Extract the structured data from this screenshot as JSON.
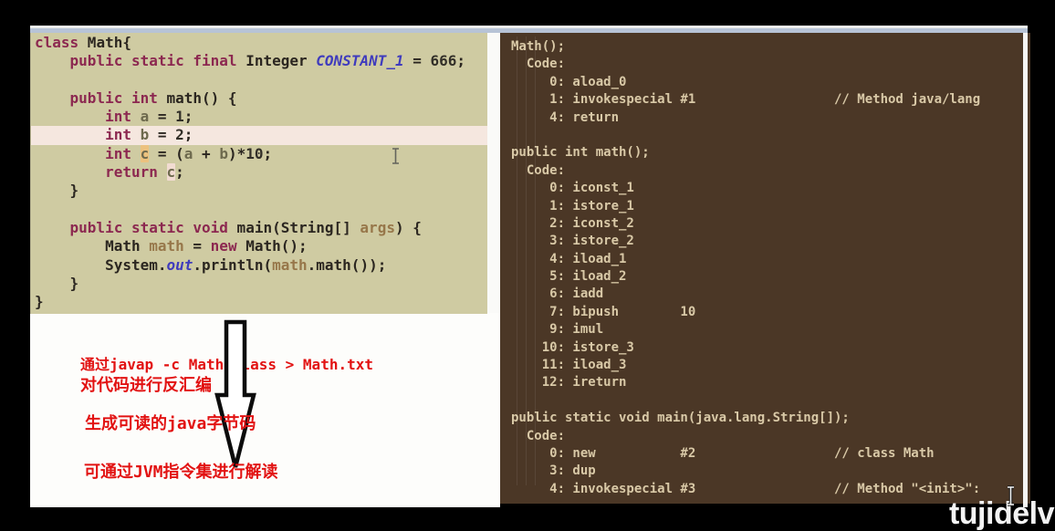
{
  "colors": {
    "editor_bg": "#cfcba2",
    "editor_keyword": "#8c2850",
    "editor_field": "#3f3bbd",
    "editor_var": "#6e6a4e",
    "editor_param": "#97774a",
    "panel_bg": "#4b3726",
    "panel_text": "#d9c9a7",
    "annotation_red": "#e21212",
    "strip_blue": "#b7c3d6",
    "line_highlight": "#f5e7df",
    "occurrence_orange": "#ecc27f",
    "occurrence_pink": "#f2dcd2"
  },
  "left_editor": {
    "lines": [
      {
        "hl": false,
        "tokens": [
          [
            "kw",
            "class"
          ],
          [
            "pl",
            " Math{"
          ]
        ]
      },
      {
        "hl": false,
        "tokens": [
          [
            "pl",
            "    "
          ],
          [
            "kw",
            "public static final"
          ],
          [
            "pl",
            " Integer "
          ],
          [
            "fld",
            "CONSTANT_1"
          ],
          [
            "pl",
            " = "
          ],
          [
            "num",
            "666"
          ],
          [
            "pl",
            ";"
          ]
        ]
      },
      {
        "hl": false,
        "tokens": []
      },
      {
        "hl": false,
        "tokens": [
          [
            "pl",
            "    "
          ],
          [
            "kw",
            "public int"
          ],
          [
            "pl",
            " math() {"
          ]
        ]
      },
      {
        "hl": false,
        "tokens": [
          [
            "pl",
            "        "
          ],
          [
            "kw",
            "int"
          ],
          [
            "pl",
            " "
          ],
          [
            "var",
            "a"
          ],
          [
            "pl",
            " = "
          ],
          [
            "num",
            "1"
          ],
          [
            "pl",
            ";"
          ]
        ]
      },
      {
        "hl": true,
        "tokens": [
          [
            "pl",
            "        "
          ],
          [
            "kw",
            "int"
          ],
          [
            "pl",
            " "
          ],
          [
            "var",
            "b"
          ],
          [
            "pl",
            " = "
          ],
          [
            "num",
            "2"
          ],
          [
            "pl",
            ";"
          ]
        ]
      },
      {
        "hl": false,
        "tokens": [
          [
            "pl",
            "        "
          ],
          [
            "kw",
            "int"
          ],
          [
            "pl",
            " "
          ],
          [
            "varo",
            "c"
          ],
          [
            "pl",
            " = ("
          ],
          [
            "var",
            "a"
          ],
          [
            "pl",
            " + "
          ],
          [
            "var",
            "b"
          ],
          [
            "pl",
            ")*"
          ],
          [
            "num",
            "10"
          ],
          [
            "pl",
            ";"
          ]
        ]
      },
      {
        "hl": false,
        "tokens": [
          [
            "pl",
            "        "
          ],
          [
            "kw",
            "return"
          ],
          [
            "pl",
            " "
          ],
          [
            "varp",
            "c"
          ],
          [
            "pl",
            ";"
          ]
        ]
      },
      {
        "hl": false,
        "tokens": [
          [
            "pl",
            "    }"
          ]
        ]
      },
      {
        "hl": false,
        "tokens": []
      },
      {
        "hl": false,
        "tokens": [
          [
            "pl",
            "    "
          ],
          [
            "kw",
            "public static void"
          ],
          [
            "pl",
            " main(String[] "
          ],
          [
            "param",
            "args"
          ],
          [
            "pl",
            ") {"
          ]
        ]
      },
      {
        "hl": false,
        "tokens": [
          [
            "pl",
            "        Math "
          ],
          [
            "param",
            "math"
          ],
          [
            "pl",
            " = "
          ],
          [
            "kw",
            "new"
          ],
          [
            "pl",
            " Math();"
          ]
        ]
      },
      {
        "hl": false,
        "tokens": [
          [
            "pl",
            "        System."
          ],
          [
            "fld",
            "out"
          ],
          [
            "pl",
            ".println("
          ],
          [
            "param",
            "math"
          ],
          [
            "pl",
            ".math());"
          ]
        ]
      },
      {
        "hl": false,
        "tokens": [
          [
            "pl",
            "    }"
          ]
        ]
      },
      {
        "hl": false,
        "tokens": [
          [
            "pl",
            "}"
          ]
        ]
      }
    ]
  },
  "right_panel": {
    "lines": [
      "Math();",
      "  Code:",
      "     0: aload_0",
      "     1: invokespecial #1                  // Method java/lang",
      "     4: return",
      "",
      "public int math();",
      "  Code:",
      "     0: iconst_1",
      "     1: istore_1",
      "     2: iconst_2",
      "     3: istore_2",
      "     4: iload_1",
      "     5: iload_2",
      "     6: iadd",
      "     7: bipush        10",
      "     9: imul",
      "    10: istore_3",
      "    11: iload_3",
      "    12: ireturn",
      "",
      "public static void main(java.lang.String[]);",
      "  Code:",
      "     0: new           #2                  // class Math",
      "     3: dup",
      "     4: invokespecial #3                  // Method \"<init>\":"
    ]
  },
  "annotations": {
    "lines": [
      "通过javap -c Math.class > Math.txt",
      "对代码进行反汇编",
      "生成可读的java字节码",
      "可通过JVM指令集进行解读"
    ]
  },
  "watermark": {
    "label": "tujidelv"
  }
}
